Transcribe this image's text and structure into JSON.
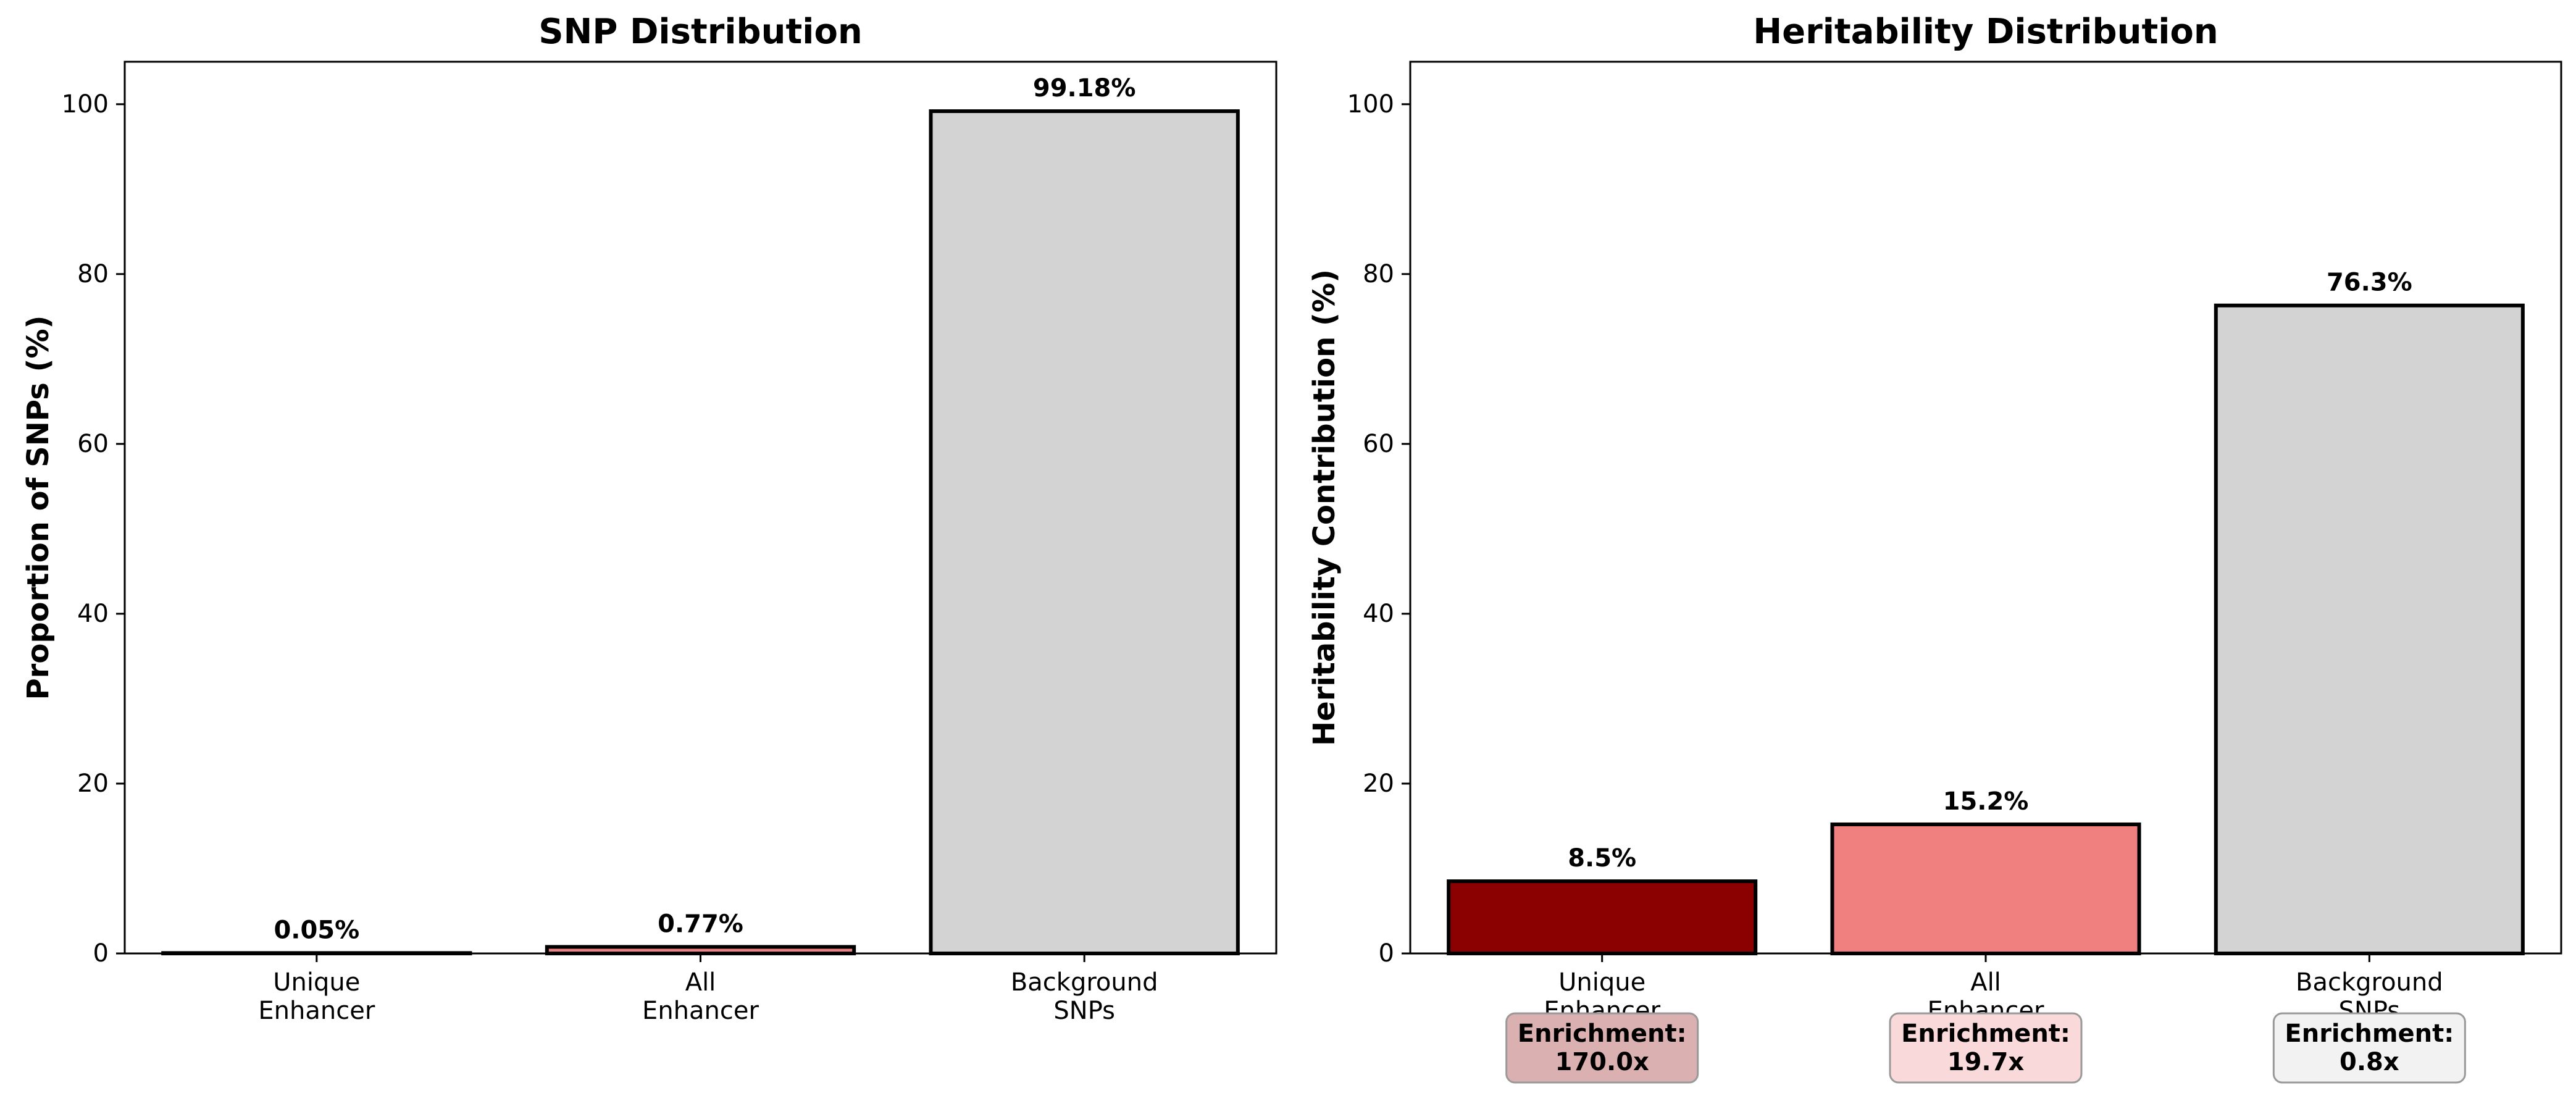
{
  "chart_data": [
    {
      "type": "bar",
      "title": "SNP Distribution",
      "xlabel": "",
      "ylabel": "Proportion of SNPs (%)",
      "ylim": [
        0,
        105
      ],
      "yticks": [
        "0",
        "20",
        "40",
        "60",
        "80",
        "100"
      ],
      "categories": [
        "Unique\nEnhancer",
        "All\nEnhancer",
        "Background\nSNPs"
      ],
      "values": [
        0.05,
        0.77,
        99.18
      ],
      "value_labels": [
        "0.05%",
        "0.77%",
        "99.18%"
      ],
      "colors": [
        "#8b0000",
        "#f08080",
        "#d3d3d3"
      ],
      "grid": false
    },
    {
      "type": "bar",
      "title": "Heritability Distribution",
      "xlabel": "",
      "ylabel": "Heritability Contribution (%)",
      "ylim": [
        0,
        105
      ],
      "yticks": [
        "0",
        "20",
        "40",
        "60",
        "80",
        "100"
      ],
      "categories": [
        "Unique\nEnhancer",
        "All\nEnhancer",
        "Background\nSNPs"
      ],
      "values": [
        8.5,
        15.2,
        76.3
      ],
      "value_labels": [
        "8.5%",
        "15.2%",
        "76.3%"
      ],
      "colors": [
        "#8b0000",
        "#f08080",
        "#d3d3d3"
      ],
      "annotations": [
        "Enrichment:\n170.0x",
        "Enrichment:\n19.7x",
        "Enrichment:\n0.8x"
      ],
      "annotation_colors": [
        "#dbb0b0",
        "#f9d9d9",
        "#f2f2f2"
      ],
      "grid": false
    }
  ]
}
